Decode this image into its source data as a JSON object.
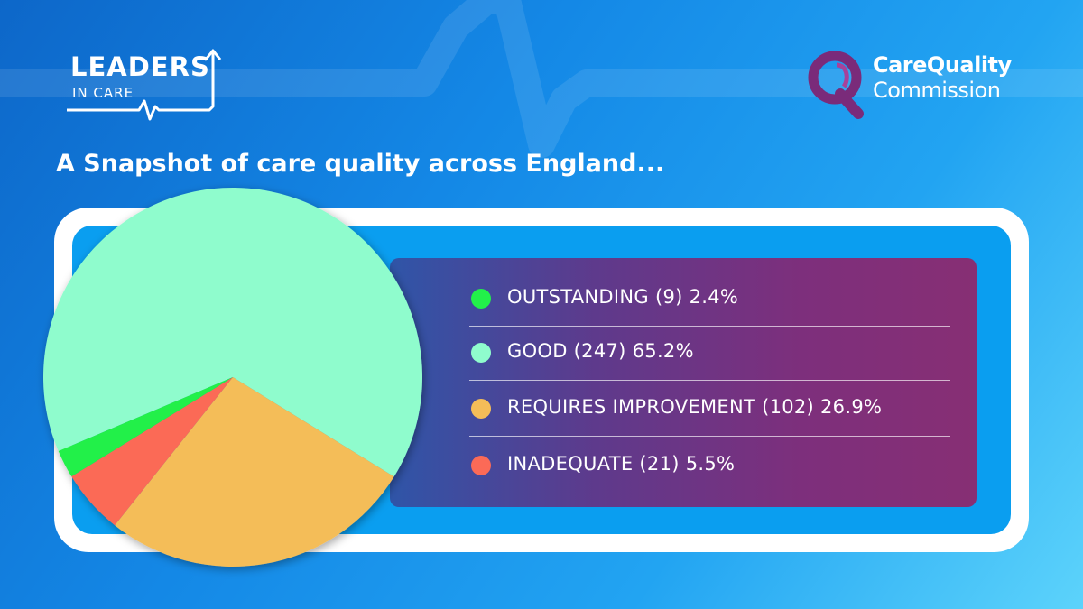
{
  "header": {
    "left_logo": {
      "line1": "LEADERS",
      "line2": "IN CARE"
    },
    "right_logo": {
      "line1": "CareQuality",
      "line2": "Commission"
    }
  },
  "title": "A Snapshot of care quality across England...",
  "colors": {
    "outstanding": "#22f04a",
    "good": "#8ffccd",
    "requires_improvement": "#f4bd58",
    "inadequate": "#fb6a57",
    "cqc_purple": "#7a2b7a"
  },
  "legend": [
    {
      "key": "outstanding",
      "text": "OUTSTANDING (9) 2.4%"
    },
    {
      "key": "good",
      "text": "GOOD (247) 65.2%"
    },
    {
      "key": "requires_improvement",
      "text": "REQUIRES IMPROVEMENT (102) 26.9%"
    },
    {
      "key": "inadequate",
      "text": "INADEQUATE (21) 5.5%"
    }
  ],
  "chart_data": {
    "type": "pie",
    "title": "A Snapshot of care quality across England...",
    "categories": [
      "OUTSTANDING",
      "GOOD",
      "REQUIRES IMPROVEMENT",
      "INADEQUATE"
    ],
    "counts": [
      9,
      247,
      102,
      21
    ],
    "values": [
      2.4,
      65.2,
      26.9,
      5.5
    ],
    "unit": "%",
    "legend_placement": "right"
  }
}
